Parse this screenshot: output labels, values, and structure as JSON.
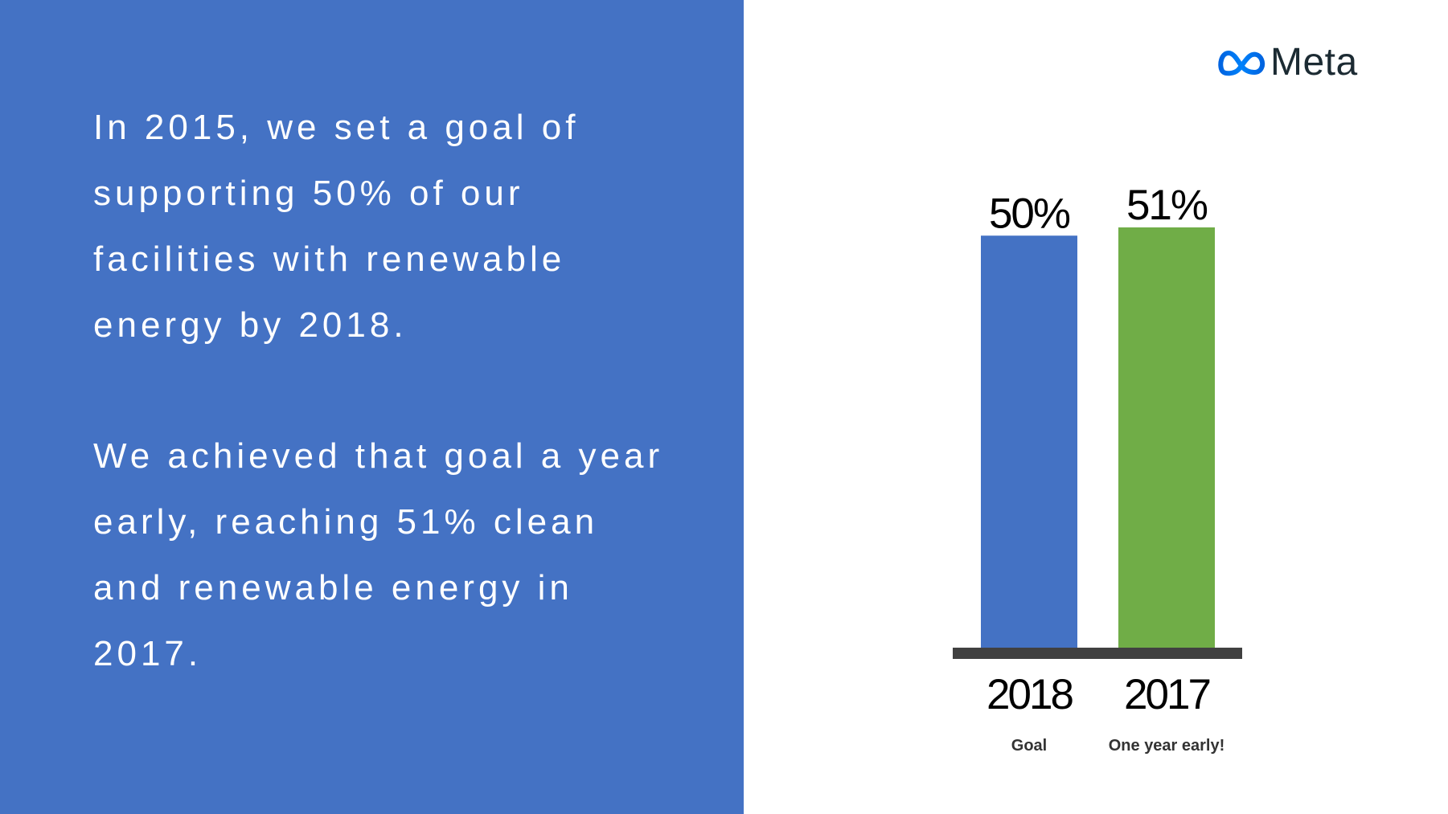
{
  "paragraphs": [
    "In 2015, we set a goal of supporting 50% of our facilities with renewable energy by 2018.",
    "We achieved that goal a year early, reaching 51% clean and renewable energy in 2017."
  ],
  "logo": {
    "text": "Meta",
    "icon": "meta-infinity-icon"
  },
  "colors": {
    "panel": "#4472c4",
    "goal_bar": "#4472c4",
    "achieved_bar": "#70ad47",
    "baseline": "#404040"
  },
  "chart_data": {
    "type": "bar",
    "categories": [
      "2018",
      "2017"
    ],
    "values": [
      50,
      51
    ],
    "value_labels": [
      "50%",
      "51%"
    ],
    "sublabels": [
      "Goal",
      "One year early!"
    ],
    "bar_colors": [
      "#4472c4",
      "#70ad47"
    ],
    "title": "",
    "xlabel": "",
    "ylabel": "",
    "ylim": [
      0,
      51
    ]
  }
}
